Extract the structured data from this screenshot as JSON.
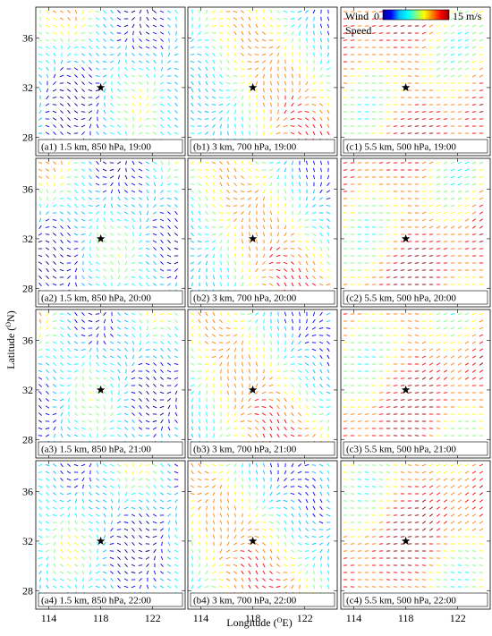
{
  "figure": {
    "y_axis_title": "Latitude (",
    "y_axis_title_sup": "O",
    "y_axis_title_tail": "N)",
    "x_axis_title": "Longitude (",
    "x_axis_title_sup": "O",
    "x_axis_title_tail": "E)",
    "y_ticks": [
      "36",
      "32",
      "28"
    ],
    "x_ticks": [
      "114",
      "118",
      "122"
    ],
    "colorbar": {
      "label_line1": "Wind",
      "label_line2": "Speed",
      "min_label": "0",
      "max_label": "15 m/s",
      "colors": [
        "#00008b",
        "#0000ff",
        "#00bfff",
        "#00ffff",
        "#7fff7f",
        "#ffff00",
        "#ff7f00",
        "#ff0000",
        "#8b0000"
      ]
    },
    "panels": [
      {
        "id": "a1",
        "label": "(a1) 1.5 km, 850 hPa, 19:00"
      },
      {
        "id": "b1",
        "label": "(b1) 3 km, 700 hPa, 19:00"
      },
      {
        "id": "c1",
        "label": "(c1) 5.5 km, 500 hPa, 19:00"
      },
      {
        "id": "a2",
        "label": "(a2) 1.5 km, 850 hPa, 20:00"
      },
      {
        "id": "b2",
        "label": "(b2) 3 km, 700 hPa, 20:00"
      },
      {
        "id": "c2",
        "label": "(c2) 5.5 km, 500 hPa, 20:00"
      },
      {
        "id": "a3",
        "label": "(a3) 1.5 km, 850 hPa, 21:00"
      },
      {
        "id": "b3",
        "label": "(b3) 3 km, 700 hPa, 21:00"
      },
      {
        "id": "c3",
        "label": "(c3) 5.5 km, 500 hPa, 21:00"
      },
      {
        "id": "a4",
        "label": "(a4) 1.5 km, 850 hPa, 22:00"
      },
      {
        "id": "b4",
        "label": "(b4) 3 km, 700 hPa, 22:00"
      },
      {
        "id": "c4",
        "label": "(c4) 5.5 km, 500 hPa, 22:00"
      }
    ],
    "marker": {
      "name": "star-marker",
      "lon": 118,
      "lat": 32
    },
    "extent": {
      "lon": [
        113,
        124.5
      ],
      "lat": [
        26.5,
        38.5
      ]
    }
  }
}
